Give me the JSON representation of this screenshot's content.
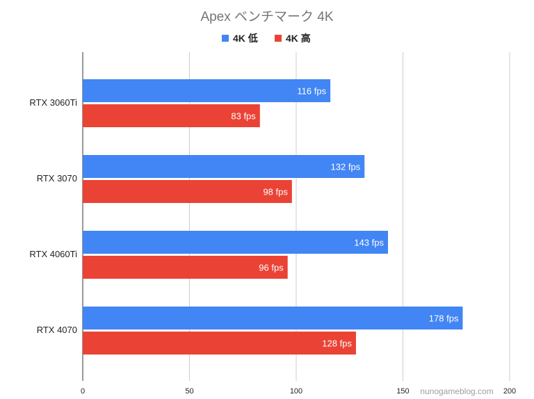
{
  "chart_data": {
    "type": "bar",
    "orientation": "horizontal",
    "title": "Apex ベンチマーク 4K",
    "categories": [
      "RTX 3060Ti",
      "RTX 3070",
      "RTX 4060Ti",
      "RTX 4070"
    ],
    "series": [
      {
        "name": "4K 低",
        "color": "#4285f4",
        "values": [
          116,
          132,
          143,
          178
        ],
        "labels": [
          "116 fps",
          "132 fps",
          "143 fps",
          "178 fps"
        ]
      },
      {
        "name": "4K 高",
        "color": "#ea4335",
        "values": [
          83,
          98,
          96,
          128
        ],
        "labels": [
          "83 fps",
          "98 fps",
          "96 fps",
          "128 fps"
        ]
      }
    ],
    "xlim": [
      0,
      200
    ],
    "xticks": [
      0,
      50,
      100,
      150,
      200
    ],
    "xtick_labels": [
      "0",
      "50",
      "100",
      "150",
      "200"
    ],
    "grid": true,
    "legend_position": "top",
    "watermark": "nunogameblog.com"
  }
}
